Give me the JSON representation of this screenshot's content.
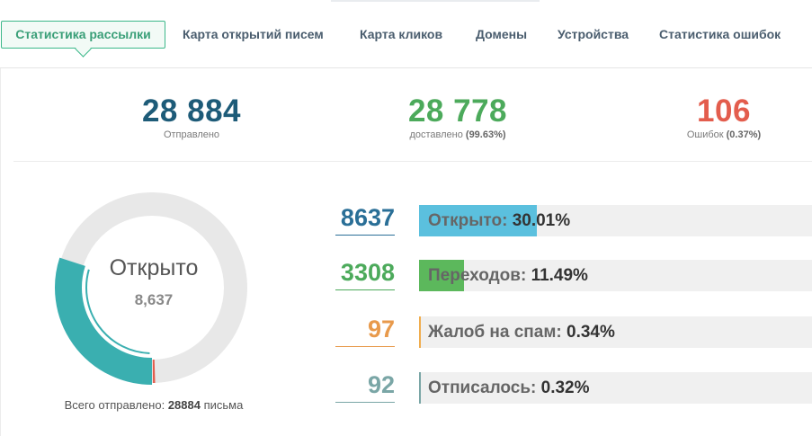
{
  "tabs": [
    {
      "label": "Статистика рассылки",
      "active": true
    },
    {
      "label": "Карта открытий писем",
      "active": false
    },
    {
      "label": "Карта кликов",
      "active": false
    },
    {
      "label": "Домены",
      "active": false
    },
    {
      "label": "Устройства",
      "active": false
    },
    {
      "label": "Статистика ошибок",
      "active": false
    }
  ],
  "summary": {
    "sent": {
      "value": "28 884",
      "label": "Отправлено"
    },
    "delivered": {
      "value": "28 778",
      "label": "доставлено",
      "pct": "(99.63%)"
    },
    "errors": {
      "value": "106",
      "label": "Ошибок",
      "pct": "(0.37%)"
    }
  },
  "donut": {
    "title": "Открыто",
    "value": "8,637",
    "opened_fraction": 0.3001,
    "error_fraction": 0.0037,
    "colors": {
      "opened": "#3aafb0",
      "error": "#e35d4d",
      "rest": "#e8e8e8"
    },
    "total_label": "Всего отправлено:",
    "total_value": "28884",
    "total_unit": "письма"
  },
  "stats": [
    {
      "count": "8637",
      "label": "Открыто:",
      "pct": "30.01%",
      "fraction": 0.3001,
      "color": "#5bc0de",
      "count_color": "#2a6f97"
    },
    {
      "count": "3308",
      "label": "Переходов:",
      "pct": "11.49%",
      "fraction": 0.1149,
      "color": "#5cb85c",
      "count_color": "#4caa5b"
    },
    {
      "count": "97",
      "label": "Жалоб на спам:",
      "pct": "0.34%",
      "fraction": 0.0034,
      "color": "#f0ad4e",
      "count_color": "#e89a4c"
    },
    {
      "count": "92",
      "label": "Отписалось:",
      "pct": "0.32%",
      "fraction": 0.0032,
      "color": "#7aa6a6",
      "count_color": "#7aa6a6"
    }
  ]
}
